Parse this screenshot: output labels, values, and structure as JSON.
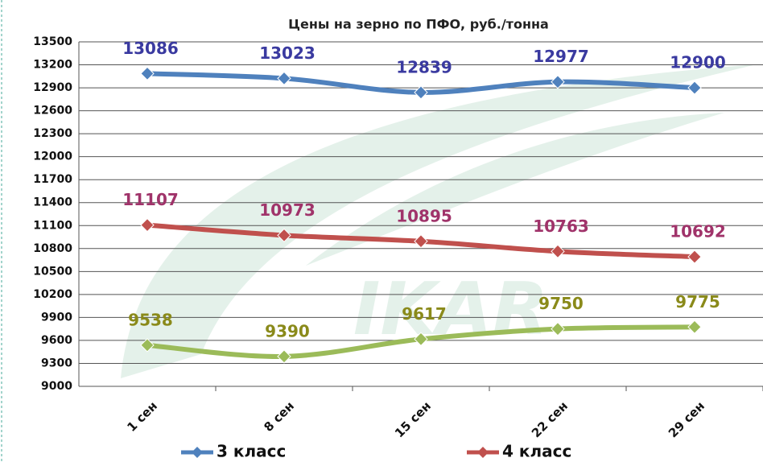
{
  "chart_data": {
    "type": "line",
    "title": "Цены на зерно по ПФО, руб./тонна",
    "watermark": "IKAR",
    "categories": [
      "1 сен",
      "8 сен",
      "15 сен",
      "22 сен",
      "29 сен"
    ],
    "series": [
      {
        "name": "3 класс",
        "color": "#4f81bd",
        "label_color": "#3a3aa0",
        "values": [
          13086,
          13023,
          12839,
          12977,
          12900
        ]
      },
      {
        "name": "4 класс",
        "color": "#c0504d",
        "label_color": "#a0336a",
        "values": [
          11107,
          10973,
          10895,
          10763,
          10692
        ]
      },
      {
        "color": "#9bbb59",
        "label_color": "#8a8a1a",
        "values": [
          9538,
          9390,
          9617,
          9750,
          9775
        ]
      }
    ],
    "ylim": [
      9000,
      13500
    ],
    "yticks": [
      9000,
      9300,
      9600,
      9900,
      10200,
      10500,
      10800,
      11100,
      11400,
      11700,
      12000,
      12300,
      12600,
      12900,
      13200,
      13500
    ],
    "grid": true
  }
}
